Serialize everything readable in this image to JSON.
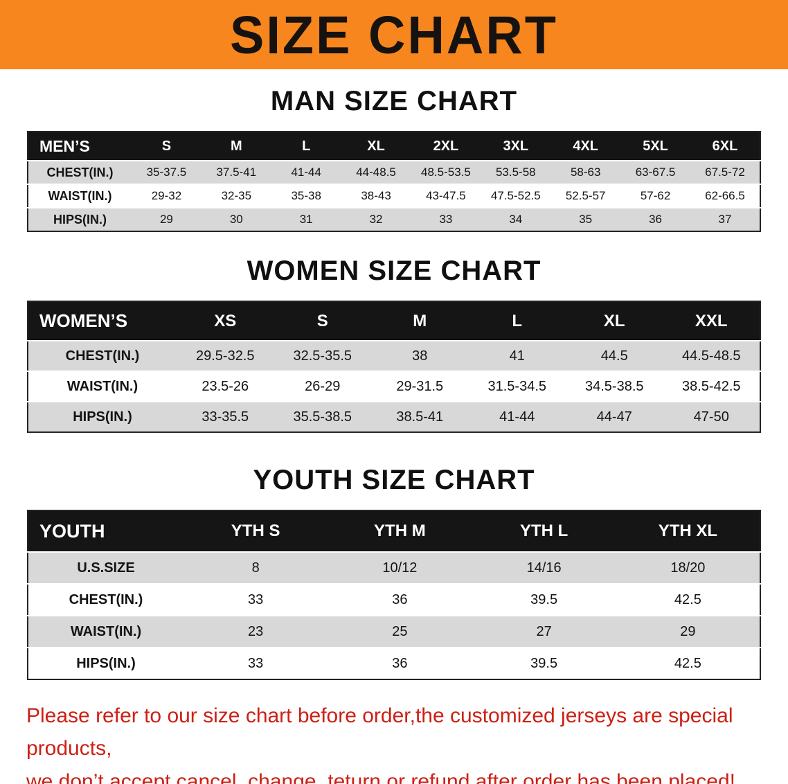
{
  "banner": {
    "title": "SIZE CHART"
  },
  "colors": {
    "banner_bg": "#f6861d",
    "header_bg": "#151515",
    "row_gray": "#d8d8d8",
    "row_white": "#ffffff",
    "disclaimer_red": "#cc2015",
    "text_black": "#121212"
  },
  "sections": [
    {
      "id": "men",
      "heading": "MAN SIZE CHART",
      "table": {
        "header": [
          "MEN’S",
          "S",
          "M",
          "L",
          "XL",
          "2XL",
          "3XL",
          "4XL",
          "5XL",
          "6XL"
        ],
        "rows": [
          [
            "CHEST(IN.)",
            "35-37.5",
            "37.5-41",
            "41-44",
            "44-48.5",
            "48.5-53.5",
            "53.5-58",
            "58-63",
            "63-67.5",
            "67.5-72"
          ],
          [
            "WAIST(IN.)",
            "29-32",
            "32-35",
            "35-38",
            "38-43",
            "43-47.5",
            "47.5-52.5",
            "52.5-57",
            "57-62",
            "62-66.5"
          ],
          [
            "HIPS(IN.)",
            "29",
            "30",
            "31",
            "32",
            "33",
            "34",
            "35",
            "36",
            "37"
          ]
        ]
      }
    },
    {
      "id": "women",
      "heading": "WOMEN SIZE CHART",
      "table": {
        "header": [
          "WOMEN’S",
          "XS",
          "S",
          "M",
          "L",
          "XL",
          "XXL"
        ],
        "rows": [
          [
            "CHEST(IN.)",
            "29.5-32.5",
            "32.5-35.5",
            "38",
            "41",
            "44.5",
            "44.5-48.5"
          ],
          [
            "WAIST(IN.)",
            "23.5-26",
            "26-29",
            "29-31.5",
            "31.5-34.5",
            "34.5-38.5",
            "38.5-42.5"
          ],
          [
            "HIPS(IN.)",
            "33-35.5",
            "35.5-38.5",
            "38.5-41",
            "41-44",
            "44-47",
            "47-50"
          ]
        ]
      }
    },
    {
      "id": "youth",
      "heading": "YOUTH SIZE CHART",
      "table": {
        "header": [
          "YOUTH",
          "YTH S",
          "YTH M",
          "YTH L",
          "YTH XL"
        ],
        "rows": [
          [
            "U.S.SIZE",
            "8",
            "10/12",
            "14/16",
            "18/20"
          ],
          [
            "CHEST(IN.)",
            "33",
            "36",
            "39.5",
            "42.5"
          ],
          [
            "WAIST(IN.)",
            "23",
            "25",
            "27",
            "29"
          ],
          [
            "HIPS(IN.)",
            "33",
            "36",
            "39.5",
            "42.5"
          ]
        ]
      }
    }
  ],
  "disclaimer": {
    "line1": "Please refer to our size chart before order,the customized jerseys are special products,",
    "line2": "we don’t accept cancel, change, teturn or refund after order has been placed!"
  }
}
